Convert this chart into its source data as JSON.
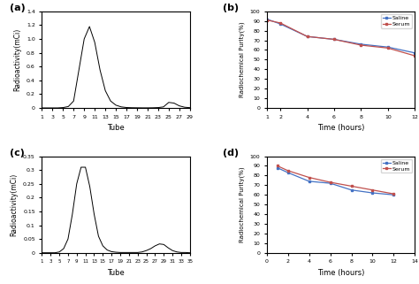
{
  "panel_a": {
    "label": "(a)",
    "xlabel": "Tube",
    "ylabel": "Radioactivity(mCi)",
    "xlim": [
      1,
      29
    ],
    "ylim": [
      0,
      1.4
    ],
    "xticks": [
      1,
      3,
      5,
      7,
      9,
      11,
      13,
      15,
      17,
      19,
      21,
      23,
      25,
      27,
      29
    ],
    "xtick_labels": [
      "1",
      "3",
      "5",
      "7",
      "9",
      "11",
      "13",
      "15",
      "17",
      "19",
      "21",
      "23",
      "25",
      "27",
      "29"
    ],
    "yticks": [
      0,
      0.2,
      0.4,
      0.6,
      0.8,
      1.0,
      1.2,
      1.4
    ],
    "ytick_labels": [
      "0",
      "0.2",
      "0.4",
      "0.6",
      "0.8",
      "1.0",
      "1.2",
      "1.4"
    ],
    "curve_x": [
      1,
      2,
      3,
      4,
      5,
      6,
      7,
      8,
      9,
      10,
      11,
      12,
      13,
      14,
      15,
      16,
      17,
      18,
      19,
      20,
      21,
      22,
      23,
      24,
      25,
      26,
      27,
      28,
      29
    ],
    "curve_y": [
      0,
      0,
      0,
      0,
      0.005,
      0.02,
      0.1,
      0.55,
      1.0,
      1.18,
      0.95,
      0.55,
      0.25,
      0.1,
      0.04,
      0.015,
      0.006,
      0.003,
      0.002,
      0.001,
      0.001,
      0.002,
      0.005,
      0.015,
      0.08,
      0.07,
      0.03,
      0.01,
      0.004
    ]
  },
  "panel_b": {
    "label": "(b)",
    "xlabel": "Time (hours)",
    "ylabel": "Radiochemical Purity(%)",
    "xlim": [
      1,
      12
    ],
    "ylim": [
      0,
      100
    ],
    "xticks": [
      1,
      2,
      4,
      6,
      8,
      10,
      12
    ],
    "yticks": [
      0,
      10,
      20,
      30,
      40,
      50,
      60,
      70,
      80,
      90,
      100
    ],
    "ytick_labels": [
      "0",
      "10",
      "20",
      "30",
      "40",
      "50",
      "60",
      "70",
      "80",
      "90",
      "100"
    ],
    "saline_x": [
      1,
      2,
      4,
      6,
      8,
      10,
      12
    ],
    "saline_y": [
      92,
      87,
      74,
      71,
      66,
      63,
      57
    ],
    "serum_x": [
      1,
      2,
      4,
      6,
      8,
      10,
      12
    ],
    "serum_y": [
      91,
      88,
      74,
      71,
      65,
      62,
      54
    ],
    "saline_color": "#4472C4",
    "serum_color": "#C0504D"
  },
  "panel_c": {
    "label": "(c)",
    "xlabel": "Tube",
    "ylabel": "Radioactivity(mCi)",
    "xlim": [
      1,
      35
    ],
    "ylim": [
      0,
      0.35
    ],
    "xticks": [
      1,
      3,
      5,
      7,
      9,
      11,
      13,
      15,
      17,
      19,
      21,
      23,
      25,
      27,
      29,
      31,
      33,
      35
    ],
    "xtick_labels": [
      "1",
      "3",
      "5",
      "7",
      "9",
      "11",
      "13",
      "15",
      "17",
      "19",
      "21",
      "23",
      "25",
      "27",
      "29",
      "31",
      "33",
      "35"
    ],
    "yticks": [
      0,
      0.05,
      0.1,
      0.15,
      0.2,
      0.25,
      0.3,
      0.35
    ],
    "ytick_labels": [
      "0",
      "0.05",
      "0.1",
      "0.15",
      "0.2",
      "0.25",
      "0.3",
      "0.35"
    ],
    "curve_x": [
      1,
      2,
      3,
      4,
      5,
      6,
      7,
      8,
      9,
      10,
      11,
      12,
      13,
      14,
      15,
      16,
      17,
      18,
      19,
      20,
      21,
      22,
      23,
      24,
      25,
      26,
      27,
      28,
      29,
      30,
      31,
      32,
      33,
      34,
      35
    ],
    "curve_y": [
      0,
      0,
      0,
      0,
      0.003,
      0.015,
      0.05,
      0.14,
      0.25,
      0.31,
      0.31,
      0.24,
      0.14,
      0.06,
      0.025,
      0.01,
      0.004,
      0.002,
      0.001,
      0.001,
      0.001,
      0.001,
      0.001,
      0.003,
      0.008,
      0.015,
      0.025,
      0.032,
      0.03,
      0.018,
      0.008,
      0.003,
      0.001,
      0.001,
      0
    ]
  },
  "panel_d": {
    "label": "(d)",
    "xlabel": "Time (hours)",
    "ylabel": "Radiochemical Purity(%)",
    "xlim": [
      0,
      14
    ],
    "ylim": [
      0,
      100
    ],
    "xticks": [
      0,
      2,
      4,
      6,
      8,
      10,
      12,
      14
    ],
    "yticks": [
      0,
      10,
      20,
      30,
      40,
      50,
      60,
      70,
      80,
      90,
      100
    ],
    "ytick_labels": [
      "0",
      "10",
      "20",
      "30",
      "40",
      "50",
      "60",
      "70",
      "80",
      "90",
      "100"
    ],
    "saline_x": [
      1,
      2,
      4,
      6,
      8,
      10,
      12
    ],
    "saline_y": [
      88,
      83,
      74,
      72,
      65,
      62,
      60
    ],
    "serum_x": [
      1,
      2,
      4,
      6,
      8,
      10,
      12
    ],
    "serum_y": [
      90,
      85,
      78,
      73,
      69,
      65,
      61
    ],
    "saline_color": "#4472C4",
    "serum_color": "#C0504D"
  }
}
